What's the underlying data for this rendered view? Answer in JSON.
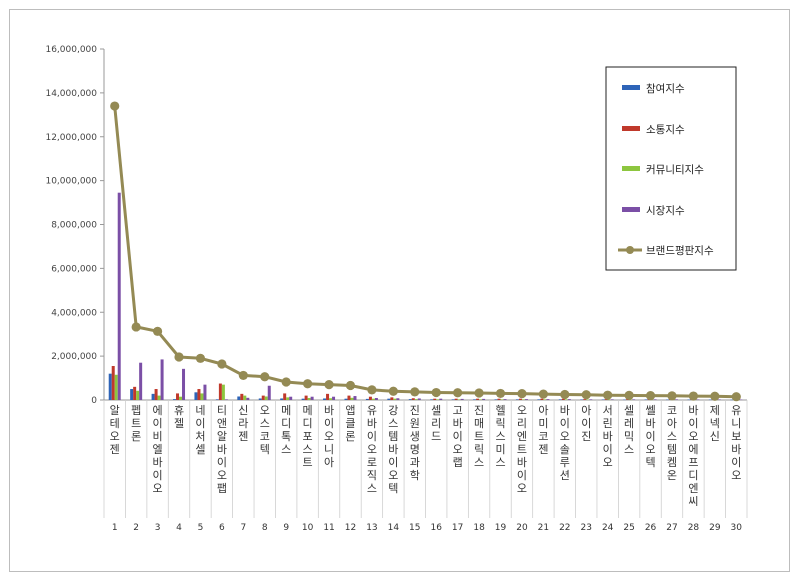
{
  "chart_data": {
    "type": "bar",
    "title": "",
    "xlabel": "",
    "ylabel": "",
    "ylim": [
      0,
      16000000
    ],
    "yticks": [
      0,
      2000000,
      4000000,
      6000000,
      8000000,
      10000000,
      12000000,
      14000000,
      16000000
    ],
    "ytick_labels": [
      "0",
      "2,000,000",
      "4,000,000",
      "6,000,000",
      "8,000,000",
      "10,000,000",
      "12,000,000",
      "14,000,000",
      "16,000,000"
    ],
    "grid": false,
    "legend_position": "top-right",
    "categories": [
      "알테오젠",
      "펩트론",
      "에이비엘바이오",
      "휴젤",
      "네이처셀",
      "티앤알바이오팹",
      "신라젠",
      "오스코텍",
      "메디톡스",
      "메디포스트",
      "바이오니아",
      "앱클론",
      "유바이오로직스",
      "강스템바이오텍",
      "진원생명과학",
      "셀리드",
      "고바이오랩",
      "진매트릭스",
      "헬릭스미스",
      "오리엔트바이오",
      "아미코젠",
      "바이오솔루션",
      "아이진",
      "서린바이오",
      "셀레믹스",
      "쎌바이오텍",
      "코아스템켐온",
      "바이오에프디엔씨",
      "제넥신",
      "유니보바이오"
    ],
    "ranks": [
      "1",
      "2",
      "3",
      "4",
      "5",
      "6",
      "7",
      "8",
      "9",
      "10",
      "11",
      "12",
      "13",
      "14",
      "15",
      "16",
      "17",
      "18",
      "19",
      "20",
      "21",
      "22",
      "23",
      "24",
      "25",
      "26",
      "27",
      "28",
      "29",
      "30"
    ],
    "series": [
      {
        "name": "참여지수",
        "kind": "bar",
        "color": "#2e64b8",
        "values": [
          1200000,
          500000,
          280000,
          40000,
          350000,
          30000,
          160000,
          70000,
          70000,
          60000,
          70000,
          60000,
          50000,
          60000,
          40000,
          30000,
          30000,
          30000,
          30000,
          30000,
          30000,
          30000,
          25000,
          25000,
          20000,
          25000,
          20000,
          20000,
          20000,
          15000
        ]
      },
      {
        "name": "소통지수",
        "kind": "bar",
        "color": "#c0392b",
        "values": [
          1550000,
          600000,
          500000,
          300000,
          500000,
          750000,
          280000,
          200000,
          300000,
          200000,
          280000,
          200000,
          150000,
          120000,
          80000,
          60000,
          60000,
          60000,
          60000,
          60000,
          60000,
          60000,
          40000,
          40000,
          40000,
          40000,
          40000,
          40000,
          40000,
          30000
        ]
      },
      {
        "name": "커뮤니티지수",
        "kind": "bar",
        "color": "#8dc63f",
        "values": [
          1150000,
          420000,
          200000,
          150000,
          300000,
          700000,
          200000,
          160000,
          120000,
          90000,
          80000,
          100000,
          60000,
          60000,
          40000,
          30000,
          30000,
          30000,
          30000,
          30000,
          30000,
          30000,
          20000,
          20000,
          20000,
          20000,
          20000,
          20000,
          20000,
          15000
        ]
      },
      {
        "name": "시장지수",
        "kind": "bar",
        "color": "#7b4fa6",
        "values": [
          9450000,
          1700000,
          1850000,
          1420000,
          700000,
          30000,
          100000,
          650000,
          150000,
          150000,
          150000,
          180000,
          90000,
          80000,
          70000,
          60000,
          50000,
          50000,
          40000,
          40000,
          40000,
          40000,
          30000,
          30000,
          30000,
          30000,
          30000,
          25000,
          25000,
          20000
        ]
      },
      {
        "name": "브랜드평판지수",
        "kind": "line",
        "color": "#948a54",
        "values": [
          13400000,
          3330000,
          3130000,
          1960000,
          1900000,
          1640000,
          1120000,
          1060000,
          820000,
          740000,
          700000,
          660000,
          460000,
          400000,
          370000,
          340000,
          330000,
          320000,
          300000,
          290000,
          270000,
          250000,
          240000,
          220000,
          210000,
          200000,
          190000,
          180000,
          170000,
          150000
        ]
      }
    ]
  }
}
